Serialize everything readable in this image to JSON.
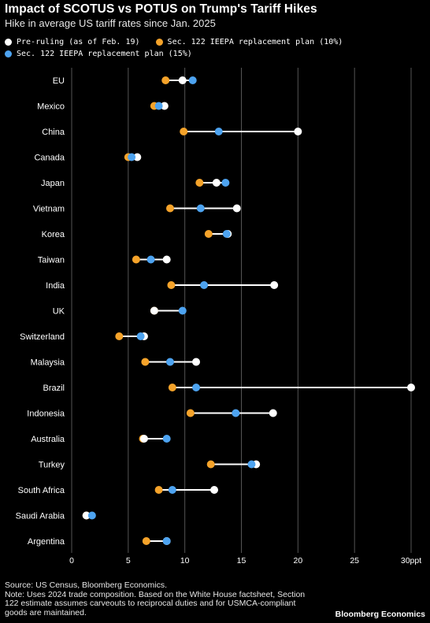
{
  "chart_data": {
    "type": "dot-range",
    "title": "Impact of SCOTUS vs POTUS on Trump's Tariff Hikes",
    "subtitle": "Hike in average US tariff rates since Jan. 2025",
    "series": [
      {
        "key": "pre",
        "name": "Pre-ruling (as of Feb. 19)",
        "color": "#ffffff"
      },
      {
        "key": "s10",
        "name": "Sec. 122 IEEPA replacement plan (10%)",
        "color": "#f5a32a"
      },
      {
        "key": "s15",
        "name": "Sec. 122 IEEPA replacement plan (15%)",
        "color": "#4da3f0"
      }
    ],
    "categories": [
      "EU",
      "Mexico",
      "China",
      "Canada",
      "Japan",
      "Vietnam",
      "Korea",
      "Taiwan",
      "India",
      "UK",
      "Switzerland",
      "Malaysia",
      "Brazil",
      "Indonesia",
      "Australia",
      "Turkey",
      "South Africa",
      "Saudi Arabia",
      "Argentina"
    ],
    "values": {
      "pre": [
        9.8,
        8.2,
        20.0,
        5.8,
        12.8,
        14.6,
        13.8,
        8.4,
        17.9,
        7.3,
        6.4,
        11.0,
        30.0,
        17.8,
        6.4,
        16.3,
        12.6,
        1.3,
        8.4
      ],
      "s10": [
        8.3,
        7.3,
        9.9,
        5.0,
        11.3,
        8.7,
        12.1,
        5.7,
        8.8,
        7.3,
        4.2,
        6.5,
        8.9,
        10.5,
        6.3,
        12.3,
        7.7,
        1.3,
        6.6
      ],
      "s15": [
        10.7,
        7.7,
        13.0,
        5.3,
        13.6,
        11.4,
        13.7,
        7.0,
        11.7,
        9.8,
        6.1,
        8.7,
        11.0,
        14.5,
        8.4,
        15.9,
        8.9,
        1.8,
        8.4
      ]
    },
    "xlim": [
      0,
      30
    ],
    "xticks": [
      0,
      5,
      10,
      15,
      20,
      25,
      30
    ],
    "xtick_labels": [
      "0",
      "5",
      "10",
      "15",
      "20",
      "25",
      "30ppt"
    ],
    "grid": "vertical"
  },
  "footer": {
    "source": "Source: US Census, Bloomberg Economics.",
    "note": "Note: Uses 2024 trade composition. Based on the White House factsheet, Section 122 estimate assumes carveouts to reciprocal duties and for USMCA-compliant goods are maintained.",
    "brand": "Bloomberg Economics"
  }
}
